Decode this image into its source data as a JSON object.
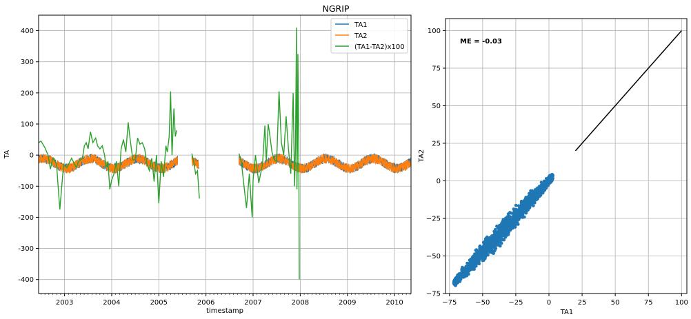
{
  "figure": {
    "title": "NGRIP"
  },
  "chart_data": [
    {
      "type": "line",
      "title": "NGRIP",
      "xlabel": "timestamp",
      "ylabel": "TA",
      "xlim": [
        2002.45,
        2010.35
      ],
      "ylim": [
        -445,
        450
      ],
      "xticks": [
        2003,
        2004,
        2005,
        2006,
        2007,
        2008,
        2009,
        2010
      ],
      "yticks": [
        400,
        300,
        200,
        100,
        0,
        -100,
        -200,
        -300,
        -400
      ],
      "grid": true,
      "legend_position": "top-right",
      "series": [
        {
          "name": "TA1",
          "color": "#1f77b4",
          "segments": [
            [
              2002.45,
              2005.4
            ],
            [
              2005.7,
              2005.85
            ],
            [
              2006.7,
              2010.35
            ]
          ]
        },
        {
          "name": "TA2",
          "color": "#ff7f0e",
          "segments": [
            [
              2002.45,
              2005.4
            ],
            [
              2005.7,
              2005.85
            ],
            [
              2006.7,
              2010.35
            ]
          ]
        },
        {
          "name": "(TA1-TA2)x100",
          "color": "#2ca02c",
          "segments": [
            {
              "x": [
                2002.45,
                2002.5,
                2002.58,
                2002.65,
                2002.7,
                2002.75,
                2002.8,
                2002.83,
                2002.9,
                2002.98,
                2003.05,
                2003.15,
                2003.25,
                2003.3,
                2003.38,
                2003.42,
                2003.46,
                2003.5,
                2003.55,
                2003.6,
                2003.66,
                2003.7,
                2003.75,
                2003.8,
                2003.85,
                2003.88,
                2003.92,
                2003.96,
                2004.0,
                2004.05,
                2004.1,
                2004.15,
                2004.2,
                2004.25,
                2004.3,
                2004.35,
                2004.4,
                2004.45,
                2004.5,
                2004.55,
                2004.6,
                2004.65,
                2004.7,
                2004.75,
                2004.8,
                2004.85,
                2004.9,
                2004.95,
                2005.0,
                2005.05,
                2005.1,
                2005.15,
                2005.18,
                2005.22,
                2005.25,
                2005.28,
                2005.32,
                2005.35,
                2005.38
              ],
              "y": [
                40,
                45,
                25,
                0,
                -45,
                -10,
                -20,
                -30,
                -175,
                -30,
                -40,
                -10,
                -40,
                -20,
                -10,
                30,
                40,
                20,
                75,
                40,
                55,
                30,
                20,
                30,
                0,
                -40,
                -20,
                -110,
                -80,
                -60,
                -20,
                -100,
                20,
                50,
                10,
                105,
                40,
                -15,
                -15,
                55,
                35,
                40,
                20,
                -30,
                -50,
                -10,
                -85,
                0,
                -155,
                -20,
                -70,
                30,
                10,
                60,
                205,
                0,
                150,
                60,
                80
              ]
            },
            {
              "x": [
                2005.7,
                2005.74,
                2005.78,
                2005.82,
                2005.86
              ],
              "y": [
                5,
                -20,
                -60,
                -50,
                -140
              ]
            },
            {
              "x": [
                2006.7,
                2006.75,
                2006.8,
                2006.86,
                2006.92,
                2006.98,
                2007.0,
                2007.05,
                2007.12,
                2007.2,
                2007.25,
                2007.28,
                2007.32,
                2007.35,
                2007.4,
                2007.45,
                2007.5,
                2007.55,
                2007.6,
                2007.65,
                2007.7,
                2007.75,
                2007.8,
                2007.85,
                2007.88,
                2007.9,
                2007.92,
                2007.93,
                2007.94,
                2007.95,
                2007.97,
                2007.98
              ],
              "y": [
                5,
                -20,
                -90,
                -170,
                -60,
                -200,
                -80,
                0,
                -90,
                -30,
                95,
                -20,
                100,
                70,
                10,
                -15,
                -20,
                205,
                40,
                0,
                125,
                20,
                -60,
                200,
                -100,
                30,
                410,
                -110,
                20,
                325,
                0,
                -400
              ]
            }
          ]
        }
      ]
    },
    {
      "type": "scatter",
      "xlabel": "TA1",
      "ylabel": "TA2",
      "xlim": [
        -78,
        104
      ],
      "ylim": [
        -75,
        108
      ],
      "xticks": [
        -75,
        -50,
        -25,
        0,
        25,
        50,
        75,
        100
      ],
      "yticks": [
        100,
        75,
        50,
        25,
        0,
        -25,
        -50,
        -75
      ],
      "grid": true,
      "annotation": "ME = -0.03",
      "point_color": "#1f77b4",
      "points_band": {
        "x_range": [
          -72,
          3
        ],
        "slope": 0.95,
        "intercept": -0.03,
        "max_spread": 7
      },
      "reference_line": {
        "x": [
          20,
          100
        ],
        "y": [
          20,
          100
        ],
        "color": "#000000"
      }
    }
  ]
}
